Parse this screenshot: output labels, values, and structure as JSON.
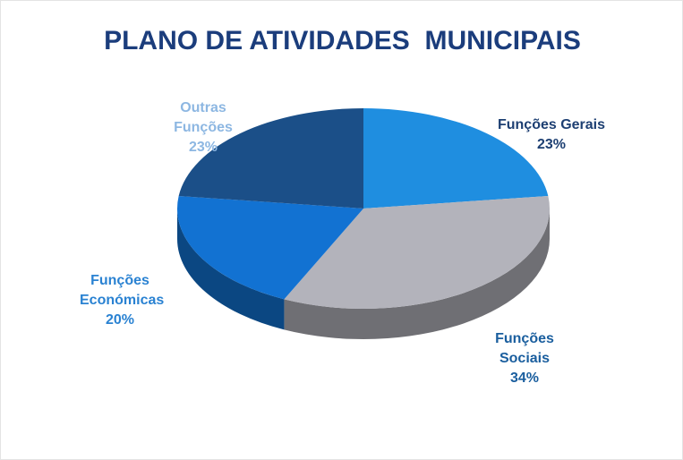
{
  "chart_data": {
    "type": "pie",
    "title": "PLANO DE ATIVIDADES  MUNICIPAIS",
    "categories": [
      "Funções Gerais",
      "Funções Sociais",
      "Funções Económicas",
      "Outras Funções"
    ],
    "values": [
      23,
      34,
      20,
      23
    ],
    "value_labels": [
      "23%",
      "34%",
      "20%",
      "23%"
    ],
    "colors": [
      "#1f8ee0",
      "#b3b3bb",
      "#1272d2",
      "#1b4f88"
    ]
  }
}
